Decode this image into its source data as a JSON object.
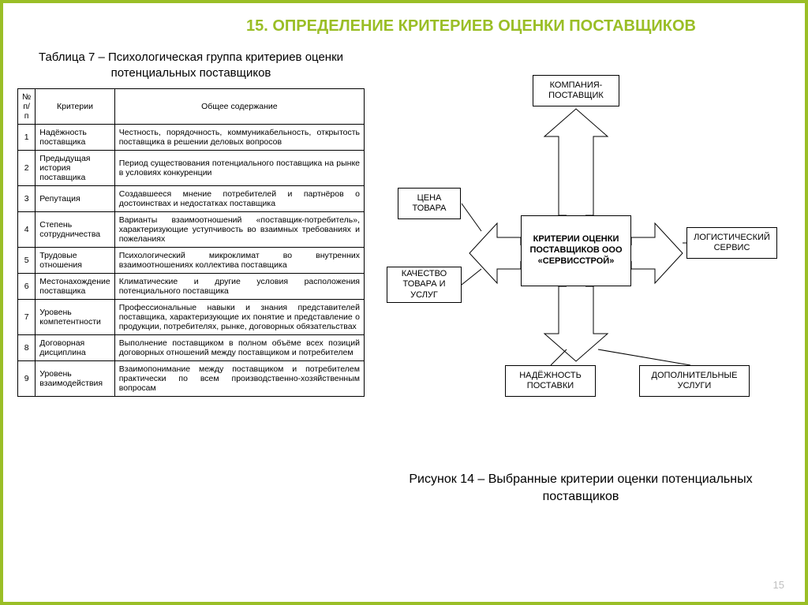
{
  "page": {
    "title": "15. ОПРЕДЕЛЕНИЕ КРИТЕРИЕВ ОЦЕНКИ ПОСТАВЩИКОВ",
    "number": "15"
  },
  "table": {
    "caption": "Таблица 7 – Психологическая группа критериев оценки потенциальных поставщиков",
    "headers": {
      "n": "№ п/п",
      "criteria": "Критерии",
      "desc": "Общее содержание"
    },
    "rows": [
      {
        "n": "1",
        "c": "Надёжность поставщика",
        "d": "Честность, порядочность, коммуникабельность, открытость поставщика в решении деловых вопросов"
      },
      {
        "n": "2",
        "c": "Предыдущая история поставщика",
        "d": "Период существования потенциального поставщика на рынке в условиях конкуренции"
      },
      {
        "n": "3",
        "c": "Репутация",
        "d": "Создавшееся мнение потребителей и партнёров о достоинствах и недостатках поставщика"
      },
      {
        "n": "4",
        "c": "Степень сотрудничества",
        "d": "Варианты взаимоотношений «поставщик-потребитель», характеризующие уступчивость во взаимных требованиях и пожеланиях"
      },
      {
        "n": "5",
        "c": "Трудовые отношения",
        "d": "Психологический микроклимат во внутренних взаимоотношениях коллектива поставщика"
      },
      {
        "n": "6",
        "c": "Местонахождение поставщика",
        "d": "Климатические и другие условия расположения потенциального поставщика"
      },
      {
        "n": "7",
        "c": "Уровень компетентности",
        "d": "Профессиональные навыки и знания представителей поставщика, характеризующие их понятие и представление о продукции, потребителях, рынке, договорных обязательствах"
      },
      {
        "n": "8",
        "c": "Договорная дисциплина",
        "d": "Выполнение поставщиком в полном объёме всех позиций договорных отношений между поставщиком и потребителем"
      },
      {
        "n": "9",
        "c": "Уровень взаимодействия",
        "d": "Взаимопонимание между поставщиком и потребителем практически по всем производственно-хозяйственным вопросам"
      }
    ]
  },
  "diagram": {
    "center": "КРИТЕРИИ ОЦЕНКИ ПОСТАВЩИКОВ ООО «СЕРВИССТРОЙ»",
    "top": "КОМПАНИЯ-ПОСТАВЩИК",
    "left_upper": "ЦЕНА ТОВАРА",
    "left_lower": "КАЧЕСТВО ТОВАРА И УСЛУГ",
    "right_upper": "ЛОГИСТИЧЕСКИЙ СЕРВИС",
    "bottom_left": "НАДЁЖНОСТЬ ПОСТАВКИ",
    "bottom_right": "ДОПОЛНИТЕЛЬНЫЕ УСЛУГИ",
    "caption": "Рисунок 14 – Выбранные критерии оценки потенциальных поставщиков",
    "colors": {
      "border": "#000000",
      "bg": "#ffffff",
      "stroke": "#000000"
    }
  },
  "colors": {
    "accent": "#9abe26",
    "text": "#000000",
    "page_num": "#bfbfbf"
  }
}
